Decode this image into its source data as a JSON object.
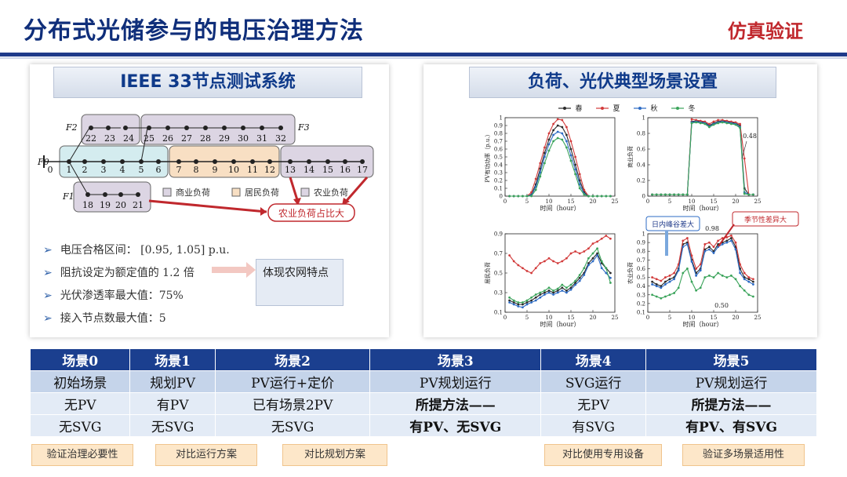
{
  "header": {
    "title": "分布式光储参与的电压治理方法",
    "tag": "仿真验证"
  },
  "left_panel": {
    "heading": "IEEE 33节点测试系统",
    "feeders": [
      "F2",
      "F3",
      "F0",
      "F1"
    ],
    "legend": [
      "商业负荷",
      "居民负荷",
      "农业负荷"
    ],
    "callout": "农业负荷占比大",
    "bullets": [
      "电压合格区间： [0.95, 1.05] p.u.",
      "阻抗设定为额定值的 1.2 倍",
      "光伏渗透率最大值：75%",
      "接入节点数最大值：5"
    ],
    "impedance_callout": "体现农网特点"
  },
  "right_panel": {
    "heading": "负荷、光伏典型场景设置",
    "seasons": [
      "春",
      "夏",
      "秋",
      "冬"
    ],
    "season_colors": [
      "#2b2b2b",
      "#d23b3b",
      "#2d6bc4",
      "#3aa35a"
    ],
    "xlabel": "时间（hour）",
    "ylabels": [
      "PV有功功率（p.u.）",
      "商业负荷",
      "居民负荷",
      "农业负荷"
    ],
    "annot_048": "0.48",
    "annot_098": "0.98",
    "annot_050": "0.50",
    "tag_peak": "日内峰谷差大",
    "tag_season": "季节性差异大"
  },
  "chart_data": [
    {
      "type": "line",
      "ylabel": "PV有功功率（p.u.）",
      "xlabel": "时间（hour）",
      "xlim": [
        0,
        25
      ],
      "ylim": [
        0,
        1.0
      ],
      "x": [
        1,
        2,
        3,
        4,
        5,
        6,
        7,
        8,
        9,
        10,
        11,
        12,
        13,
        14,
        15,
        16,
        17,
        18,
        19,
        20,
        21,
        22,
        23,
        24
      ],
      "series": [
        {
          "name": "春",
          "values": [
            0,
            0,
            0,
            0,
            0,
            0.02,
            0.15,
            0.35,
            0.55,
            0.72,
            0.84,
            0.9,
            0.88,
            0.78,
            0.6,
            0.4,
            0.2,
            0.05,
            0,
            0,
            0,
            0,
            0,
            0
          ]
        },
        {
          "name": "夏",
          "values": [
            0,
            0,
            0,
            0,
            0,
            0.05,
            0.22,
            0.42,
            0.62,
            0.8,
            0.92,
            0.98,
            0.97,
            0.88,
            0.7,
            0.5,
            0.28,
            0.08,
            0,
            0,
            0,
            0,
            0,
            0
          ]
        },
        {
          "name": "秋",
          "values": [
            0,
            0,
            0,
            0,
            0,
            0.01,
            0.12,
            0.3,
            0.5,
            0.66,
            0.78,
            0.82,
            0.8,
            0.7,
            0.52,
            0.34,
            0.15,
            0.03,
            0,
            0,
            0,
            0,
            0,
            0
          ]
        },
        {
          "name": "冬",
          "values": [
            0,
            0,
            0,
            0,
            0,
            0,
            0.08,
            0.25,
            0.42,
            0.58,
            0.7,
            0.74,
            0.72,
            0.62,
            0.45,
            0.28,
            0.1,
            0.02,
            0,
            0,
            0,
            0,
            0,
            0
          ]
        }
      ]
    },
    {
      "type": "line",
      "ylabel": "商业负荷",
      "xlabel": "时间（hour）",
      "xlim": [
        0,
        25
      ],
      "ylim": [
        0,
        1.0
      ],
      "x": [
        1,
        2,
        3,
        4,
        5,
        6,
        7,
        8,
        9,
        10,
        11,
        12,
        13,
        14,
        15,
        16,
        17,
        18,
        19,
        20,
        21,
        22,
        23,
        24
      ],
      "series": [
        {
          "name": "春",
          "values": [
            0.02,
            0.02,
            0.02,
            0.02,
            0.02,
            0.02,
            0.02,
            0.02,
            0.02,
            0.95,
            0.96,
            0.95,
            0.94,
            0.9,
            0.93,
            0.95,
            0.96,
            0.95,
            0.94,
            0.93,
            0.9,
            0.1,
            0.02,
            0.02
          ]
        },
        {
          "name": "夏",
          "values": [
            0.02,
            0.02,
            0.02,
            0.02,
            0.02,
            0.02,
            0.02,
            0.02,
            0.02,
            0.98,
            0.97,
            0.96,
            0.95,
            0.92,
            0.95,
            0.97,
            0.97,
            0.96,
            0.95,
            0.94,
            0.92,
            0.48,
            0.02,
            0.02
          ]
        },
        {
          "name": "秋",
          "values": [
            0.02,
            0.02,
            0.02,
            0.02,
            0.02,
            0.02,
            0.02,
            0.02,
            0.02,
            0.94,
            0.95,
            0.94,
            0.93,
            0.89,
            0.92,
            0.94,
            0.95,
            0.94,
            0.93,
            0.92,
            0.88,
            0.05,
            0.02,
            0.02
          ]
        },
        {
          "name": "冬",
          "values": [
            0.02,
            0.02,
            0.02,
            0.02,
            0.02,
            0.02,
            0.02,
            0.02,
            0.02,
            0.93,
            0.94,
            0.93,
            0.92,
            0.88,
            0.91,
            0.93,
            0.94,
            0.93,
            0.92,
            0.91,
            0.87,
            0.03,
            0.02,
            0.02
          ]
        }
      ]
    },
    {
      "type": "line",
      "ylabel": "居民负荷",
      "xlabel": "时间（hour）",
      "xlim": [
        0,
        25
      ],
      "ylim": [
        0.1,
        0.9
      ],
      "x": [
        1,
        2,
        3,
        4,
        5,
        6,
        7,
        8,
        9,
        10,
        11,
        12,
        13,
        14,
        15,
        16,
        17,
        18,
        19,
        20,
        21,
        22,
        23,
        24
      ],
      "series": [
        {
          "name": "春",
          "values": [
            0.22,
            0.2,
            0.18,
            0.18,
            0.2,
            0.22,
            0.25,
            0.28,
            0.3,
            0.32,
            0.3,
            0.32,
            0.35,
            0.32,
            0.35,
            0.4,
            0.45,
            0.5,
            0.6,
            0.65,
            0.7,
            0.6,
            0.55,
            0.5
          ]
        },
        {
          "name": "夏",
          "values": [
            0.68,
            0.62,
            0.58,
            0.55,
            0.52,
            0.5,
            0.55,
            0.6,
            0.62,
            0.65,
            0.62,
            0.6,
            0.62,
            0.65,
            0.7,
            0.72,
            0.7,
            0.72,
            0.75,
            0.8,
            0.82,
            0.85,
            0.88,
            0.85
          ]
        },
        {
          "name": "秋",
          "values": [
            0.2,
            0.18,
            0.16,
            0.15,
            0.18,
            0.2,
            0.22,
            0.25,
            0.28,
            0.3,
            0.28,
            0.3,
            0.32,
            0.3,
            0.33,
            0.38,
            0.42,
            0.48,
            0.58,
            0.62,
            0.68,
            0.55,
            0.5,
            0.45
          ]
        },
        {
          "name": "冬",
          "values": [
            0.25,
            0.22,
            0.2,
            0.2,
            0.22,
            0.25,
            0.28,
            0.3,
            0.32,
            0.35,
            0.32,
            0.34,
            0.38,
            0.35,
            0.38,
            0.42,
            0.48,
            0.55,
            0.65,
            0.7,
            0.75,
            0.62,
            0.55,
            0.4
          ]
        }
      ]
    },
    {
      "type": "line",
      "ylabel": "农业负荷",
      "xlabel": "时间（hour）",
      "xlim": [
        0,
        25
      ],
      "ylim": [
        0.1,
        1.0
      ],
      "x": [
        1,
        2,
        3,
        4,
        5,
        6,
        7,
        8,
        9,
        10,
        11,
        12,
        13,
        14,
        15,
        16,
        17,
        18,
        19,
        20,
        21,
        22,
        23,
        24
      ],
      "series": [
        {
          "name": "春",
          "values": [
            0.45,
            0.42,
            0.4,
            0.45,
            0.48,
            0.5,
            0.6,
            0.88,
            0.9,
            0.7,
            0.55,
            0.6,
            0.82,
            0.85,
            0.8,
            0.88,
            0.9,
            0.92,
            0.95,
            0.85,
            0.6,
            0.5,
            0.48,
            0.45
          ]
        },
        {
          "name": "夏",
          "values": [
            0.5,
            0.48,
            0.46,
            0.5,
            0.52,
            0.55,
            0.65,
            0.92,
            0.95,
            0.75,
            0.6,
            0.65,
            0.88,
            0.9,
            0.85,
            0.92,
            0.95,
            0.96,
            0.98,
            0.9,
            0.65,
            0.55,
            0.5,
            0.48
          ]
        },
        {
          "name": "秋",
          "values": [
            0.42,
            0.4,
            0.38,
            0.42,
            0.45,
            0.48,
            0.58,
            0.85,
            0.88,
            0.68,
            0.52,
            0.58,
            0.8,
            0.82,
            0.78,
            0.85,
            0.88,
            0.9,
            0.92,
            0.82,
            0.55,
            0.48,
            0.45,
            0.42
          ]
        },
        {
          "name": "冬",
          "values": [
            0.3,
            0.28,
            0.26,
            0.28,
            0.3,
            0.32,
            0.38,
            0.55,
            0.6,
            0.45,
            0.35,
            0.38,
            0.5,
            0.52,
            0.5,
            0.55,
            0.52,
            0.5,
            0.52,
            0.48,
            0.4,
            0.35,
            0.3,
            0.28
          ]
        }
      ]
    }
  ],
  "table": {
    "headers": [
      "场景0",
      "场景1",
      "场景2",
      "场景3",
      "场景4",
      "场景5"
    ],
    "subtitles": [
      "初始场景",
      "规划PV",
      "PV运行+定价",
      "PV规划运行",
      "SVG运行",
      "PV规划运行"
    ],
    "row1": [
      "无PV",
      "有PV",
      "已有场景2PV",
      "所提方法——",
      "无PV",
      "所提方法——"
    ],
    "row2": [
      "无SVG",
      "无SVG",
      "无SVG",
      "有PV、无SVG",
      "有SVG",
      "有PV、有SVG"
    ]
  },
  "notes": [
    "验证治理必要性",
    "对比运行方案",
    "对比规划方案",
    "对比使用专用设备",
    "验证多场景适用性"
  ]
}
